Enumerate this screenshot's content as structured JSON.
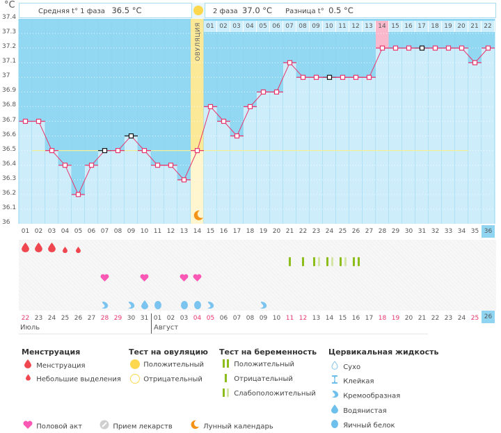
{
  "header": {
    "unit": "°C",
    "phase1_label": "Средняя t° 1 фаза",
    "phase1_value": "36.5 °C",
    "phase2_label": "2 фаза",
    "phase2_value": "37.0 °C",
    "diff_label": "Разница t°",
    "diff_value": "0.5 °C",
    "ovulation_label": "ОВУЛЯЦИЯ"
  },
  "top_day_numbers": [
    "01",
    "02",
    "03",
    "04",
    "05",
    "06",
    "07",
    "08",
    "09",
    "10",
    "11",
    "12",
    "13",
    "14",
    "15",
    "16",
    "17",
    "18",
    "19",
    "20",
    "21",
    "22"
  ],
  "colors": {
    "sky": "#93d8f2",
    "column": "#cdedfb",
    "ovulation": "#fbe998",
    "line": "#e8356b",
    "coverline": "#f4ef94",
    "highlight": "#f9b8cb"
  },
  "chart_data": {
    "type": "line",
    "title": "",
    "ylabel": "°C",
    "ylim": [
      36.0,
      37.4
    ],
    "yticks": [
      "37.4",
      "37.3",
      "37.2",
      "37.1",
      "37",
      "36.9",
      "36.8",
      "36.7",
      "36.6",
      "36.5",
      "36.4",
      "36.3",
      "36.2",
      "36.1",
      "36"
    ],
    "cycle_days": [
      "01",
      "02",
      "03",
      "04",
      "05",
      "06",
      "07",
      "08",
      "09",
      "10",
      "11",
      "12",
      "13",
      "14",
      "15",
      "16",
      "17",
      "18",
      "19",
      "20",
      "21",
      "22",
      "23",
      "24",
      "25",
      "26",
      "27",
      "28",
      "29",
      "30",
      "31",
      "32",
      "33",
      "34",
      "35",
      "36"
    ],
    "temperatures": [
      36.7,
      36.7,
      36.5,
      36.4,
      36.2,
      36.4,
      36.5,
      36.5,
      36.6,
      36.5,
      36.4,
      36.4,
      36.3,
      36.5,
      36.8,
      36.7,
      36.6,
      36.8,
      36.9,
      36.9,
      37.1,
      37.0,
      37.0,
      37.0,
      37.0,
      37.0,
      37.0,
      37.2,
      37.2,
      37.2,
      37.2,
      37.2,
      37.2,
      37.2,
      37.1,
      37.2
    ],
    "black_marker_days": [
      7,
      9,
      24,
      31
    ],
    "ovulation_day": 14,
    "coverline": 36.5,
    "highlighted_day": 28,
    "selected_day": 36
  },
  "symbols": {
    "menstruation": [
      {
        "day": 1,
        "type": "heavy"
      },
      {
        "day": 2,
        "type": "heavy"
      },
      {
        "day": 3,
        "type": "heavy"
      },
      {
        "day": 4,
        "type": "light"
      },
      {
        "day": 5,
        "type": "light"
      }
    ],
    "pregnancy_test": [
      {
        "day": 21,
        "type": "negative"
      },
      {
        "day": 22,
        "type": "negative"
      },
      {
        "day": 23,
        "type": "weak"
      },
      {
        "day": 24,
        "type": "weak"
      },
      {
        "day": 25,
        "type": "weak"
      },
      {
        "day": 26,
        "type": "positive"
      }
    ],
    "sex": [
      7,
      10,
      13,
      14
    ],
    "cervical": [
      {
        "day": 7,
        "type": "creamy"
      },
      {
        "day": 9,
        "type": "creamy"
      },
      {
        "day": 10,
        "type": "watery"
      },
      {
        "day": 11,
        "type": "eggwhite"
      },
      {
        "day": 13,
        "type": "eggwhite"
      },
      {
        "day": 14,
        "type": "eggwhite"
      },
      {
        "day": 15,
        "type": "creamy"
      },
      {
        "day": 19,
        "type": "creamy"
      }
    ]
  },
  "calendar_dates": [
    {
      "d": "22",
      "red": true
    },
    {
      "d": "23",
      "red": false
    },
    {
      "d": "24",
      "red": false
    },
    {
      "d": "25",
      "red": false
    },
    {
      "d": "26",
      "red": false
    },
    {
      "d": "27",
      "red": false
    },
    {
      "d": "28",
      "red": true
    },
    {
      "d": "29",
      "red": true
    },
    {
      "d": "30",
      "red": false
    },
    {
      "d": "31",
      "red": false
    },
    {
      "d": "01",
      "red": false
    },
    {
      "d": "02",
      "red": false
    },
    {
      "d": "03",
      "red": false
    },
    {
      "d": "04",
      "red": true
    },
    {
      "d": "05",
      "red": true
    },
    {
      "d": "06",
      "red": false
    },
    {
      "d": "07",
      "red": false
    },
    {
      "d": "08",
      "red": false
    },
    {
      "d": "09",
      "red": false
    },
    {
      "d": "10",
      "red": false
    },
    {
      "d": "11",
      "red": true
    },
    {
      "d": "12",
      "red": true
    },
    {
      "d": "13",
      "red": false
    },
    {
      "d": "14",
      "red": false
    },
    {
      "d": "15",
      "red": false
    },
    {
      "d": "16",
      "red": false
    },
    {
      "d": "17",
      "red": false
    },
    {
      "d": "18",
      "red": true
    },
    {
      "d": "19",
      "red": true
    },
    {
      "d": "20",
      "red": false
    },
    {
      "d": "21",
      "red": false
    },
    {
      "d": "22",
      "red": false
    },
    {
      "d": "23",
      "red": false
    },
    {
      "d": "24",
      "red": false
    },
    {
      "d": "25",
      "red": true
    },
    {
      "d": "26",
      "red": false
    }
  ],
  "months": {
    "m1": "Июль",
    "m2": "Август"
  },
  "legend": {
    "menstruation": {
      "title": "Менструация",
      "items": [
        "Менструация",
        "Небольшие выделения"
      ]
    },
    "ovulation_test": {
      "title": "Тест на овуляцию",
      "items": [
        "Положительный",
        "Отрицательный"
      ]
    },
    "pregnancy_test": {
      "title": "Тест на беременность",
      "items": [
        "Положительный",
        "Отрицательный",
        "Слабоположительный"
      ]
    },
    "cervical": {
      "title": "Цервикальная жидкость",
      "items": [
        "Сухо",
        "Клейкая",
        "Кремообразная",
        "Водянистая",
        "Яичный белок"
      ]
    },
    "bottom": [
      "Половой акт",
      "Прием лекарств",
      "Лунный календарь"
    ]
  }
}
